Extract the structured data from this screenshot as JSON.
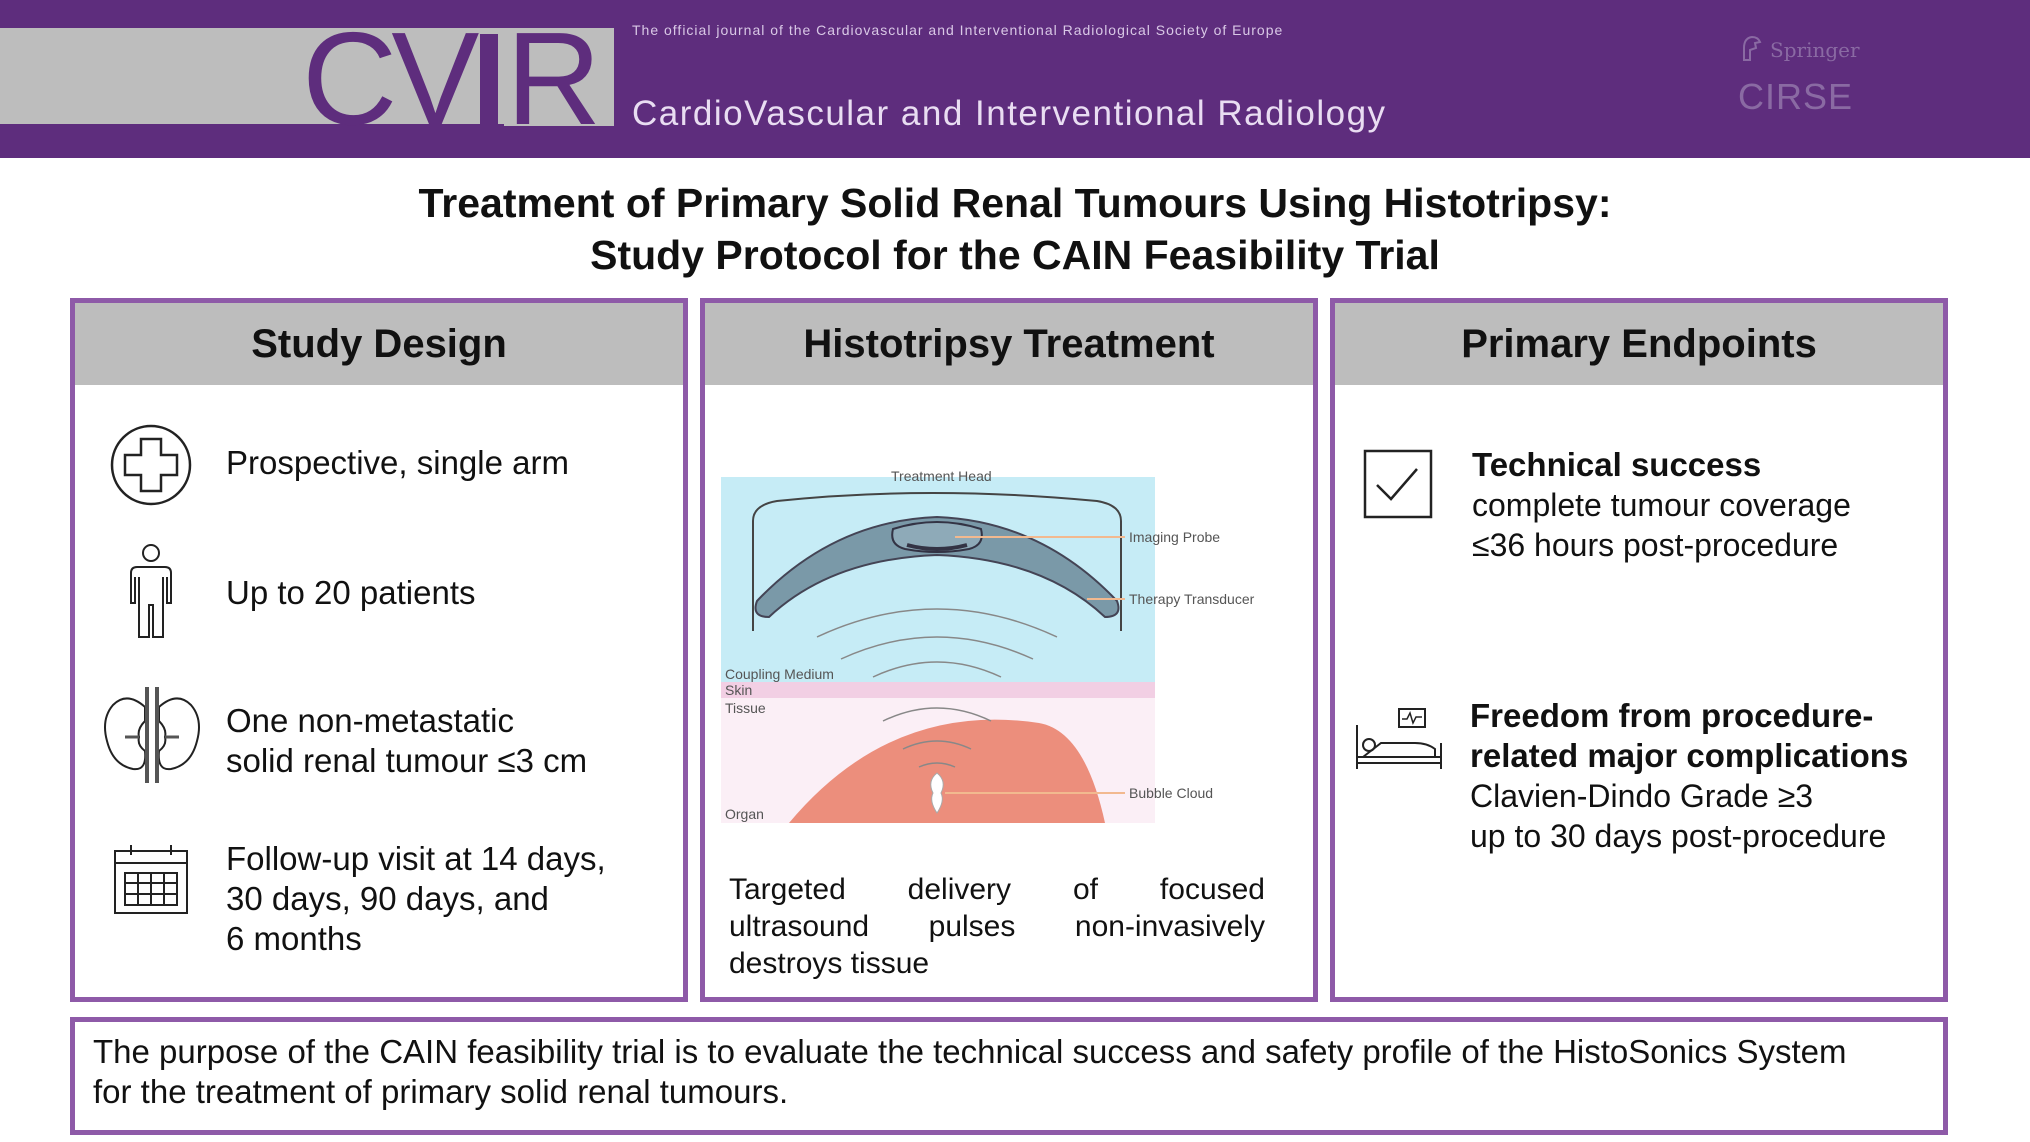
{
  "header": {
    "logo_text": "CVIR",
    "official_line": "The official journal of the  Cardiovascular and Interventional Radiological Society of Europe",
    "journal_name": "CardioVascular and Interventional Radiology",
    "publisher": "Springer",
    "society_logo": "CIRSE"
  },
  "title": {
    "line1": "Treatment of Primary Solid Renal Tumours Using Histotripsy:",
    "line2": "Study Protocol for the CAIN Feasibility Trial"
  },
  "study_design": {
    "heading": "Study Design",
    "items": [
      {
        "icon": "medical-cross-icon",
        "lines": [
          "Prospective, single arm"
        ]
      },
      {
        "icon": "person-icon",
        "lines": [
          "Up to 20 patients"
        ]
      },
      {
        "icon": "kidney-icon",
        "lines": [
          "One non-metastatic",
          "solid renal tumour ≤3 cm"
        ]
      },
      {
        "icon": "calendar-icon",
        "lines": [
          "Follow-up visit at 14 days,",
          "30 days, 90 days, and",
          "6 months"
        ]
      }
    ]
  },
  "histotripsy": {
    "heading": "Histotripsy Treatment",
    "diagram_labels": {
      "treatment_head": "Treatment Head",
      "imaging_probe": "Imaging Probe",
      "therapy_transducer": "Therapy Transducer",
      "coupling_medium": "Coupling Medium",
      "skin": "Skin",
      "tissue": "Tissue",
      "organ": "Organ",
      "bubble_cloud": "Bubble Cloud"
    },
    "caption_row1": [
      "Targeted",
      "delivery",
      "of",
      "focused"
    ],
    "caption_row2": [
      "ultrasound",
      "pulses",
      "non-invasively"
    ],
    "caption_row3": "destroys tissue"
  },
  "endpoints": {
    "heading": "Primary Endpoints",
    "items": [
      {
        "icon": "checkbox-icon",
        "title_lines": [
          "Technical success"
        ],
        "lines": [
          "complete tumour coverage",
          "≤36 hours post-procedure"
        ]
      },
      {
        "icon": "hospital-bed-icon",
        "title_lines": [
          "Freedom from procedure-",
          "related major complications"
        ],
        "lines": [
          "Clavien-Dindo Grade ≥3",
          "up to 30 days post-procedure"
        ]
      }
    ]
  },
  "purpose": {
    "line1": "The purpose of the CAIN feasibility trial is to evaluate the technical success and safety profile of the HistoSonics System",
    "line2": "for the treatment of primary solid renal tumours."
  },
  "colors": {
    "brand_purple": "#5e2d7d",
    "panel_border": "#8e5aa8",
    "panel_header": "#bdbdbd",
    "coupling_medium": "#c6ecf6",
    "skin": "#f2cfe4",
    "tissue": "#fbeff6",
    "organ": "#ec8e7c"
  }
}
